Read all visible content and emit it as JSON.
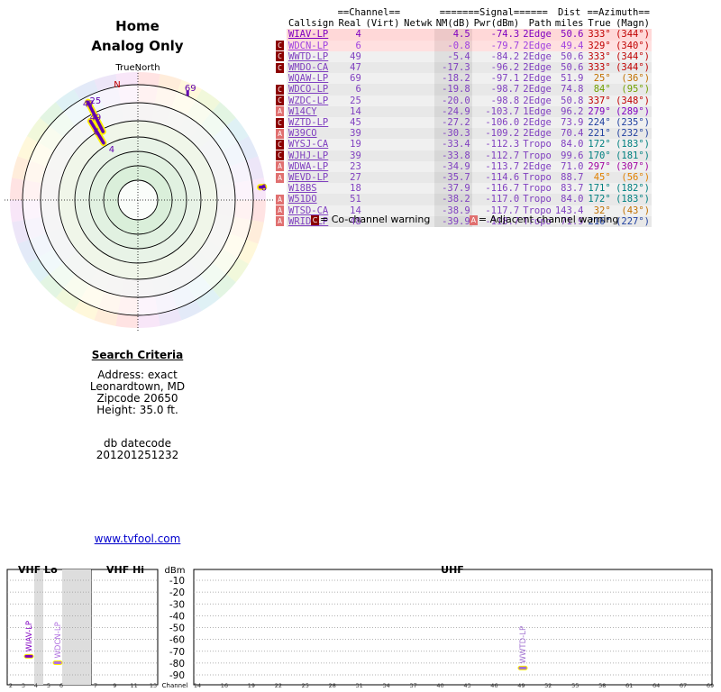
{
  "header": {
    "title": "Home",
    "subtitle": "Analog Only"
  },
  "radar": {
    "true_north_label": "TrueNorth",
    "north_marker": "N",
    "labels": [
      {
        "text": "47",
        "a": 333,
        "d": 0.85
      },
      {
        "text": "25",
        "a": 337,
        "d": 0.85
      },
      {
        "text": "49",
        "a": 333,
        "d": 0.73
      },
      {
        "text": "6",
        "a": 329,
        "d": 0.63
      },
      {
        "text": "4",
        "a": 333,
        "d": 0.45
      },
      {
        "text": "69",
        "a": 25,
        "d": 0.97
      },
      {
        "text": "6",
        "a": 84,
        "d": 0.99
      }
    ],
    "bars": [
      {
        "a": 333,
        "r0": 0.86,
        "r1": 0.6,
        "color": "#ffee00"
      },
      {
        "a": 329,
        "r0": 0.72,
        "r1": 0.52,
        "color": "#ffee00"
      },
      {
        "a": 84,
        "r0": 0.99,
        "r1": 0.96,
        "color": "#ffee00"
      }
    ]
  },
  "criteria": {
    "title": "Search Criteria",
    "address": "Address: exact",
    "city": "Leonardtown, MD",
    "zipcode": "Zipcode 20650",
    "height": "Height: 35.0 ft.",
    "db_label": "db datecode",
    "db_value": "201201251232"
  },
  "link": {
    "text": "www.tvfool.com"
  },
  "table": {
    "group_channel": "==Channel==",
    "group_signal": "=======Signal======",
    "group_dist": "Dist",
    "group_azimuth": "==Azimuth==",
    "headers": [
      "Callsign",
      "Real",
      "(Virt)",
      "Netwk",
      "NM(dB)",
      "Pwr(dBm)",
      "Path",
      "miles",
      "True",
      "(Magn)"
    ],
    "rows": [
      {
        "warn": "",
        "call": "WIAV-LP",
        "real": "4",
        "nm": "4.5",
        "pwr": "-74.3",
        "path": "2Edge",
        "dist": "50.6",
        "az_true": "333°",
        "az_magn": "(344°)",
        "color": "#8000c0",
        "az_color": "#c00000",
        "bg": "#ffd8d8"
      },
      {
        "warn": "co",
        "call": "WDCN-LP",
        "real": "6",
        "nm": "-0.8",
        "pwr": "-79.7",
        "path": "2Edge",
        "dist": "49.4",
        "az_true": "329°",
        "az_magn": "(340°)",
        "color": "#a040e0",
        "az_color": "#c00000",
        "bg": "#ffe0e0"
      },
      {
        "warn": "co",
        "call": "WWTD-LP",
        "real": "49",
        "nm": "-5.4",
        "pwr": "-84.2",
        "path": "2Edge",
        "dist": "50.6",
        "az_true": "333°",
        "az_magn": "(344°)",
        "color": "#8040c0",
        "az_color": "#c00000",
        "bg": "#f0f0f0"
      },
      {
        "warn": "co",
        "call": "WMDO-CA",
        "real": "47",
        "nm": "-17.3",
        "pwr": "-96.2",
        "path": "2Edge",
        "dist": "50.6",
        "az_true": "333°",
        "az_magn": "(344°)",
        "color": "#8040c0",
        "az_color": "#c00000",
        "bg": "#e8e8e8"
      },
      {
        "warn": "",
        "call": "WQAW-LP",
        "real": "69",
        "nm": "-18.2",
        "pwr": "-97.1",
        "path": "2Edge",
        "dist": "51.9",
        "az_true": "25°",
        "az_magn": "(36°)",
        "color": "#8040c0",
        "az_color": "#c07000",
        "bg": "#f0f0f0"
      },
      {
        "warn": "co",
        "call": "WDCO-LP",
        "real": "6",
        "nm": "-19.8",
        "pwr": "-98.7",
        "path": "2Edge",
        "dist": "74.8",
        "az_true": "84°",
        "az_magn": "(95°)",
        "color": "#8040c0",
        "az_color": "#70a000",
        "bg": "#e8e8e8"
      },
      {
        "warn": "co",
        "call": "WZDC-LP",
        "real": "25",
        "nm": "-20.0",
        "pwr": "-98.8",
        "path": "2Edge",
        "dist": "50.8",
        "az_true": "337°",
        "az_magn": "(348°)",
        "color": "#8040c0",
        "az_color": "#c00000",
        "bg": "#f0f0f0"
      },
      {
        "warn": "adj",
        "call": "W14CY",
        "real": "14",
        "nm": "-24.9",
        "pwr": "-103.7",
        "path": "1Edge",
        "dist": "96.2",
        "az_true": "279°",
        "az_magn": "(289°)",
        "color": "#8040c0",
        "az_color": "#8000c0",
        "bg": "#e8e8e8"
      },
      {
        "warn": "co",
        "call": "WZTD-LP",
        "real": "45",
        "nm": "-27.2",
        "pwr": "-106.0",
        "path": "2Edge",
        "dist": "73.9",
        "az_true": "224°",
        "az_magn": "(235°)",
        "color": "#8040c0",
        "az_color": "#2040a0",
        "bg": "#f0f0f0"
      },
      {
        "warn": "adj",
        "call": "W39CO",
        "real": "39",
        "nm": "-30.3",
        "pwr": "-109.2",
        "path": "2Edge",
        "dist": "70.4",
        "az_true": "221°",
        "az_magn": "(232°)",
        "color": "#8040c0",
        "az_color": "#2040a0",
        "bg": "#e8e8e8"
      },
      {
        "warn": "co",
        "call": "WYSJ-CA",
        "real": "19",
        "nm": "-33.4",
        "pwr": "-112.3",
        "path": "Tropo",
        "dist": "84.0",
        "az_true": "172°",
        "az_magn": "(183°)",
        "color": "#8040c0",
        "az_color": "#008080",
        "bg": "#f0f0f0"
      },
      {
        "warn": "co",
        "call": "WJHJ-LP",
        "real": "39",
        "nm": "-33.8",
        "pwr": "-112.7",
        "path": "Tropo",
        "dist": "99.6",
        "az_true": "170°",
        "az_magn": "(181°)",
        "color": "#8040c0",
        "az_color": "#008080",
        "bg": "#e8e8e8"
      },
      {
        "warn": "adj",
        "call": "WDWA-LP",
        "real": "23",
        "nm": "-34.9",
        "pwr": "-113.7",
        "path": "2Edge",
        "dist": "71.0",
        "az_true": "297°",
        "az_magn": "(307°)",
        "color": "#8040c0",
        "az_color": "#a000a0",
        "bg": "#f0f0f0"
      },
      {
        "warn": "adj",
        "call": "WEVD-LP",
        "real": "27",
        "nm": "-35.7",
        "pwr": "-114.6",
        "path": "Tropo",
        "dist": "88.7",
        "az_true": "45°",
        "az_magn": "(56°)",
        "color": "#8040c0",
        "az_color": "#e08000",
        "bg": "#e8e8e8"
      },
      {
        "warn": "",
        "call": "W18BS",
        "real": "18",
        "nm": "-37.9",
        "pwr": "-116.7",
        "path": "Tropo",
        "dist": "83.7",
        "az_true": "171°",
        "az_magn": "(182°)",
        "color": "#8040c0",
        "az_color": "#008080",
        "bg": "#f0f0f0"
      },
      {
        "warn": "adj",
        "call": "W51DO",
        "real": "51",
        "nm": "-38.2",
        "pwr": "-117.0",
        "path": "Tropo",
        "dist": "84.0",
        "az_true": "172°",
        "az_magn": "(183°)",
        "color": "#8040c0",
        "az_color": "#008080",
        "bg": "#e8e8e8"
      },
      {
        "warn": "adj",
        "call": "WTSD-CA",
        "real": "14",
        "nm": "-38.9",
        "pwr": "-117.7",
        "path": "Tropo",
        "dist": "143.4",
        "az_true": "32°",
        "az_magn": "(43°)",
        "color": "#8040c0",
        "az_color": "#c07000",
        "bg": "#f0f0f0"
      },
      {
        "warn": "adj",
        "call": "WRID-LP",
        "real": "48",
        "nm": "-39.9",
        "pwr": "-118.7",
        "path": "Tropo",
        "dist": "71.9",
        "az_true": "216°",
        "az_magn": "(227°)",
        "color": "#8040c0",
        "az_color": "#2040a0",
        "bg": "#e8e8e8"
      }
    ]
  },
  "legend": {
    "co_text": "= Co-channel warning",
    "adj_text": "= Adjacent channel warning"
  },
  "spectrum": {
    "vhf_lo": "VHF Lo",
    "vhf_hi": "VHF Hi",
    "uhf": "UHF",
    "dbm_label": "dBm",
    "channel_label": "Channel",
    "db_ticks": [
      "-10",
      "-20",
      "-30",
      "-40",
      "-50",
      "-60",
      "-70",
      "-80",
      "-90"
    ],
    "vhf_lo_channels": [
      "2",
      "3",
      "4",
      "5",
      "6"
    ],
    "vhf_hi_channels": [
      "7",
      "9",
      "11",
      "13"
    ],
    "uhf_channels": [
      "14",
      "16",
      "19",
      "22",
      "25",
      "28",
      "31",
      "34",
      "37",
      "40",
      "43",
      "46",
      "49",
      "52",
      "55",
      "58",
      "61",
      "64",
      "67",
      "69"
    ],
    "stations": [
      {
        "call": "WIAV-LP",
        "band": "vhf_lo",
        "x": 32,
        "dbm": -74.3,
        "color": "#8000c0"
      },
      {
        "call": "WDCN-LP",
        "band": "vhf_lo",
        "x": 64,
        "dbm": -79.7,
        "color": "#b070e0"
      },
      {
        "call": "WWTD-LP",
        "band": "uhf",
        "x": 580,
        "dbm": -84.2,
        "color": "#a070d0"
      }
    ]
  }
}
